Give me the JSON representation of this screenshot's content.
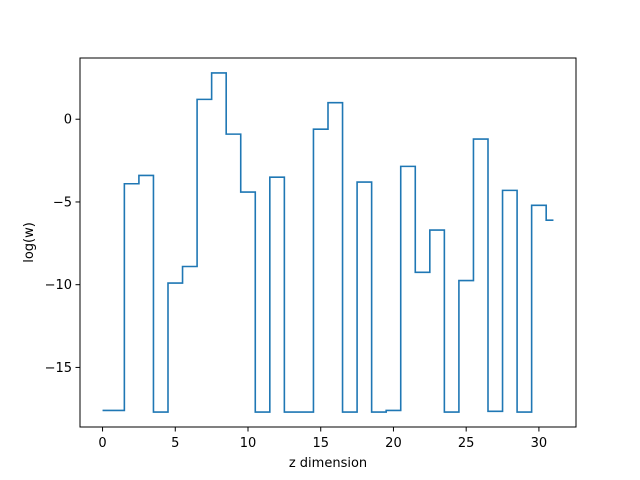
{
  "chart_data": {
    "type": "line",
    "drawstyle": "steps-mid",
    "title": "",
    "xlabel": "z dimension",
    "ylabel": "log(w)",
    "xlim": [
      -1.55,
      32.55
    ],
    "ylim": [
      -18.6,
      3.7
    ],
    "xticks": [
      0,
      5,
      10,
      15,
      20,
      25,
      30
    ],
    "yticks": [
      0,
      -5,
      -10,
      -15
    ],
    "ytick_labels": [
      "0",
      "−5",
      "−10",
      "−15"
    ],
    "grid": false,
    "color": "#1f77b4",
    "series": [
      {
        "x": [
          0,
          1,
          2,
          3,
          4,
          5,
          6,
          7,
          8,
          9,
          10,
          11,
          12,
          13,
          14,
          15,
          16,
          17,
          18,
          19,
          20,
          21,
          22,
          23,
          24,
          25,
          26,
          27,
          28,
          29,
          30,
          31
        ],
        "values": [
          -17.6,
          -17.6,
          -3.9,
          -3.4,
          -17.7,
          -9.9,
          -8.9,
          1.2,
          2.8,
          -0.9,
          -4.4,
          -17.7,
          -3.5,
          -17.7,
          -17.7,
          -0.6,
          1.0,
          -17.7,
          -3.8,
          -17.7,
          -17.6,
          -2.85,
          -9.25,
          -6.7,
          -17.7,
          -9.75,
          -1.2,
          -17.65,
          -4.3,
          -17.7,
          -5.2,
          -6.1
        ]
      }
    ]
  }
}
